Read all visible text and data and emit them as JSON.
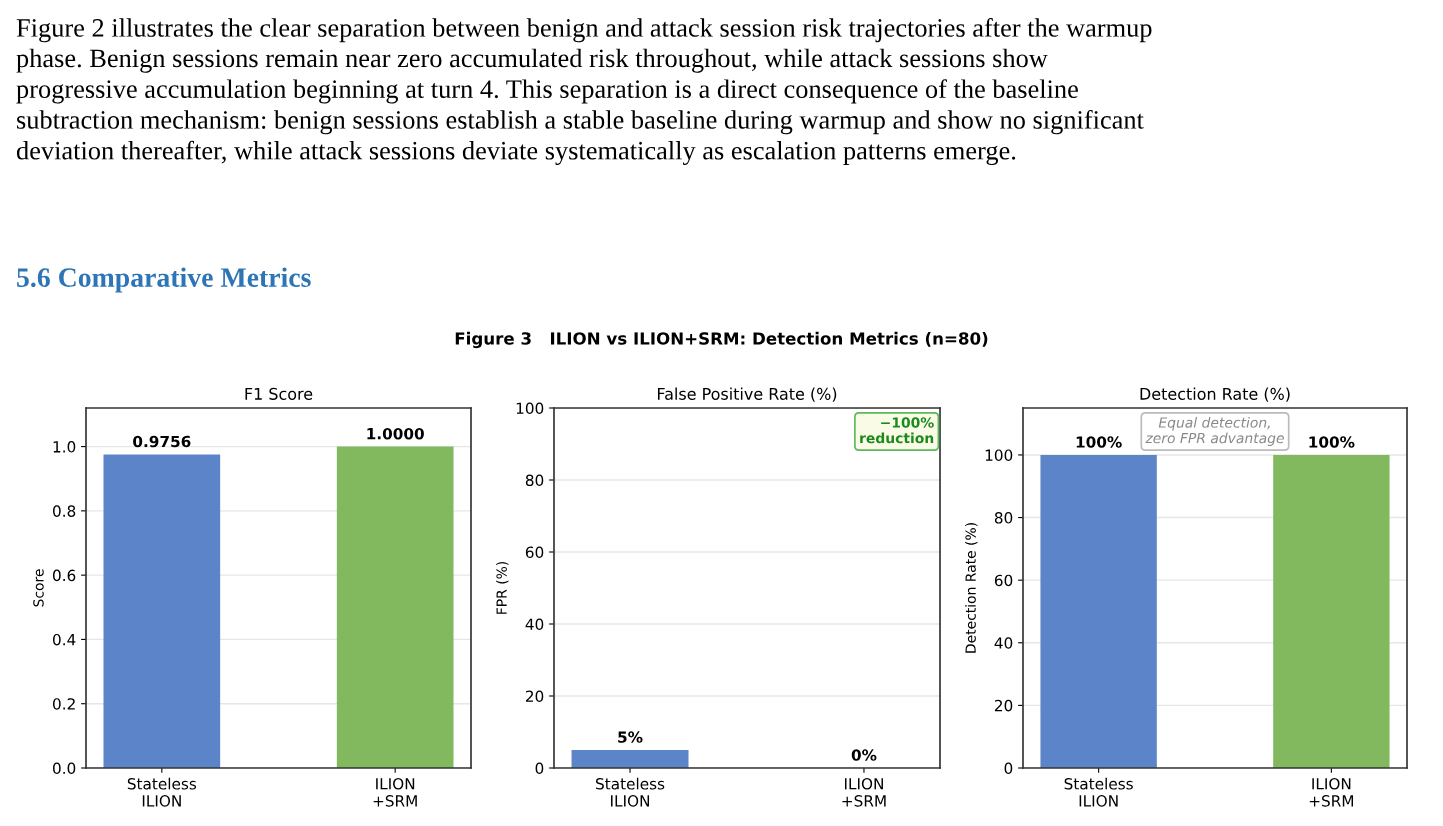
{
  "chart_data": [
    {
      "type": "other",
      "title": "Figure 3   ILION vs ILION+SRM: Detection Metrics (n=80)",
      "annotations": [
        "Figure 2 illustrates the clear separation between benign and attack session risk trajectories after the warmup\nphase. Benign sessions remain near zero accumulated risk throughout, while attack sessions show\nprogressive accumulation beginning at turn 4. This separation is a direct consequence of the baseline\nsubtraction mechanism: benign sessions establish a stable baseline during warmup and show no significant\ndeviation thereafter, while attack sessions deviate systematically as escalation patterns emerge.",
        "5.6 Comparative Metrics"
      ]
    },
    {
      "type": "bar",
      "title": "F1 Score",
      "ylabel": "Score",
      "categories": [
        "Stateless\nILION",
        "ILION\n+SRM"
      ],
      "values": [
        0.9756,
        1.0
      ],
      "colors": [
        "#5b84c9",
        "#82b85e"
      ],
      "value_labels": [
        "0.9756",
        "1.0000"
      ],
      "ylim": [
        0,
        1.12
      ],
      "yticks": [
        {
          "value": 0,
          "label": "0.0"
        },
        0.2,
        0.4,
        0.6,
        0.8,
        {
          "value": 1,
          "label": "1.0"
        }
      ],
      "grid": "y"
    },
    {
      "type": "bar",
      "title": "False Positive Rate (%)",
      "ylabel": "FPR (%)",
      "categories": [
        "Stateless\nILION",
        "ILION\n+SRM"
      ],
      "values": [
        5,
        0
      ],
      "colors": [
        "#5b84c9",
        "#82b85e"
      ],
      "value_labels": [
        "5%",
        "0%"
      ],
      "ylim": [
        0,
        100
      ],
      "yticks": [
        0,
        20,
        40,
        60,
        80,
        100
      ],
      "grid": "y",
      "annotations": [
        "−100%\nreduction"
      ]
    },
    {
      "type": "bar",
      "title": "Detection Rate (%)",
      "ylabel": "Detection Rate (%)",
      "categories": [
        "Stateless\nILION",
        "ILION\n+SRM"
      ],
      "values": [
        100,
        100
      ],
      "colors": [
        "#5b84c9",
        "#82b85e"
      ],
      "value_labels": [
        "100%",
        "100%"
      ],
      "ylim": [
        0,
        115
      ],
      "yticks": [
        0,
        20,
        40,
        60,
        80,
        100
      ],
      "grid": "y",
      "annotations": [
        "Equal detection,\nzero FPR advantage"
      ]
    }
  ]
}
